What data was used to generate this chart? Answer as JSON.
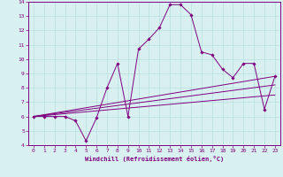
{
  "xlabel": "Windchill (Refroidissement éolien,°C)",
  "xlim": [
    -0.5,
    23.5
  ],
  "ylim": [
    4,
    14
  ],
  "xticks": [
    0,
    1,
    2,
    3,
    4,
    5,
    6,
    7,
    8,
    9,
    10,
    11,
    12,
    13,
    14,
    15,
    16,
    17,
    18,
    19,
    20,
    21,
    22,
    23
  ],
  "yticks": [
    4,
    5,
    6,
    7,
    8,
    9,
    10,
    11,
    12,
    13,
    14
  ],
  "background_color": "#d8f0f0",
  "line_color": "#800080",
  "grid_color": "#b8dede",
  "line1_x": [
    0,
    1,
    2,
    3,
    4,
    5,
    6,
    7,
    8,
    9,
    10,
    11,
    12,
    13,
    14,
    15,
    16,
    17,
    18,
    19,
    20,
    21,
    22,
    23
  ],
  "line1_y": [
    6.0,
    6.0,
    6.0,
    6.0,
    5.7,
    4.3,
    5.9,
    8.0,
    9.7,
    6.0,
    10.7,
    11.4,
    12.2,
    13.8,
    13.8,
    13.1,
    10.5,
    10.3,
    9.3,
    8.7,
    9.7,
    9.7,
    6.5,
    8.8
  ],
  "line2_x": [
    0,
    23
  ],
  "line2_y": [
    6.0,
    8.8
  ],
  "line3_x": [
    0,
    23
  ],
  "line3_y": [
    6.0,
    7.5
  ],
  "line4_x": [
    0,
    23
  ],
  "line4_y": [
    6.0,
    8.2
  ]
}
